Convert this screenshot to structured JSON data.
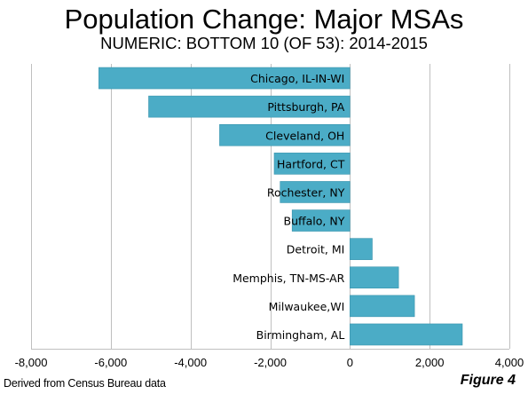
{
  "chart_data": {
    "type": "bar",
    "orientation": "horizontal",
    "title": "Population Change: Major MSAs",
    "subtitle": "NUMERIC: BOTTOM 10 (OF 53): 2014-2015",
    "categories": [
      "Chicago, IL-IN-WI",
      "Pittsburgh, PA",
      "Cleveland, OH",
      "Hartford, CT",
      "Rochester, NY",
      "Buffalo, NY",
      "Detroit,  MI",
      "Memphis, TN-MS-AR",
      "Milwaukee,WI",
      "Birmingham, AL"
    ],
    "values": [
      -6300,
      -5050,
      -3270,
      -1900,
      -1750,
      -1450,
      560,
      1220,
      1620,
      2820
    ],
    "xlim": [
      -8000,
      4000
    ],
    "xticks": [
      -8000,
      -6000,
      -4000,
      -2000,
      0,
      2000,
      4000
    ],
    "xtick_labels": [
      "-8,000",
      "-6,000",
      "-4,000",
      "-2,000",
      "0",
      "2,000",
      "4,000"
    ],
    "grid": true,
    "bar_color": "#4bacc6"
  },
  "footer": {
    "source": "Derived from Census Bureau data",
    "figure_label": "Figure 4"
  }
}
